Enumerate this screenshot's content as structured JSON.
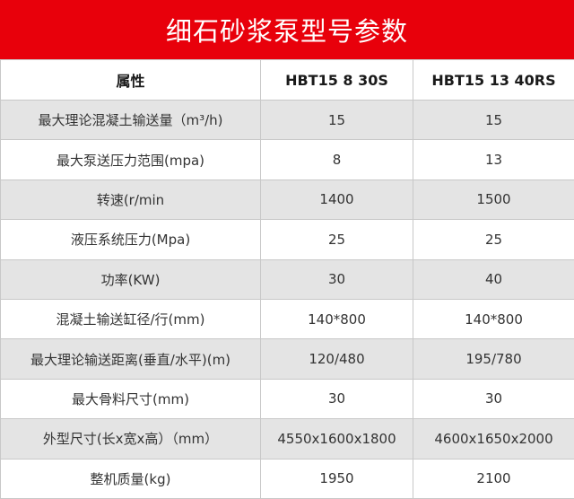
{
  "title": "细石砂浆泵型号参数",
  "colors": {
    "banner": "#e8000b",
    "row_shade": "#e4e4e4"
  },
  "table": {
    "headers": [
      "属性",
      "HBT15 8 30S",
      "HBT15 13 40RS"
    ],
    "rows": [
      [
        "最大理论混凝土输送量（m³/h)",
        "15",
        "15"
      ],
      [
        "最大泵送压力范围(mpa)",
        "8",
        "13"
      ],
      [
        "转速(r/min",
        "1400",
        "1500"
      ],
      [
        "液压系统压力(Mpa)",
        "25",
        "25"
      ],
      [
        "功率(KW)",
        "30",
        "40"
      ],
      [
        "混凝土输送缸径/行(mm)",
        "140*800",
        "140*800"
      ],
      [
        "最大理论输送距离(垂直/水平)(m)",
        "120/480",
        "195/780"
      ],
      [
        "最大骨料尺寸(mm)",
        "30",
        "30"
      ],
      [
        "外型尺寸(长x宽x高）（mm）",
        "4550x1600x1800",
        "4600x1650x2000"
      ],
      [
        "整机质量(kg)",
        "1950",
        "2100"
      ]
    ]
  }
}
